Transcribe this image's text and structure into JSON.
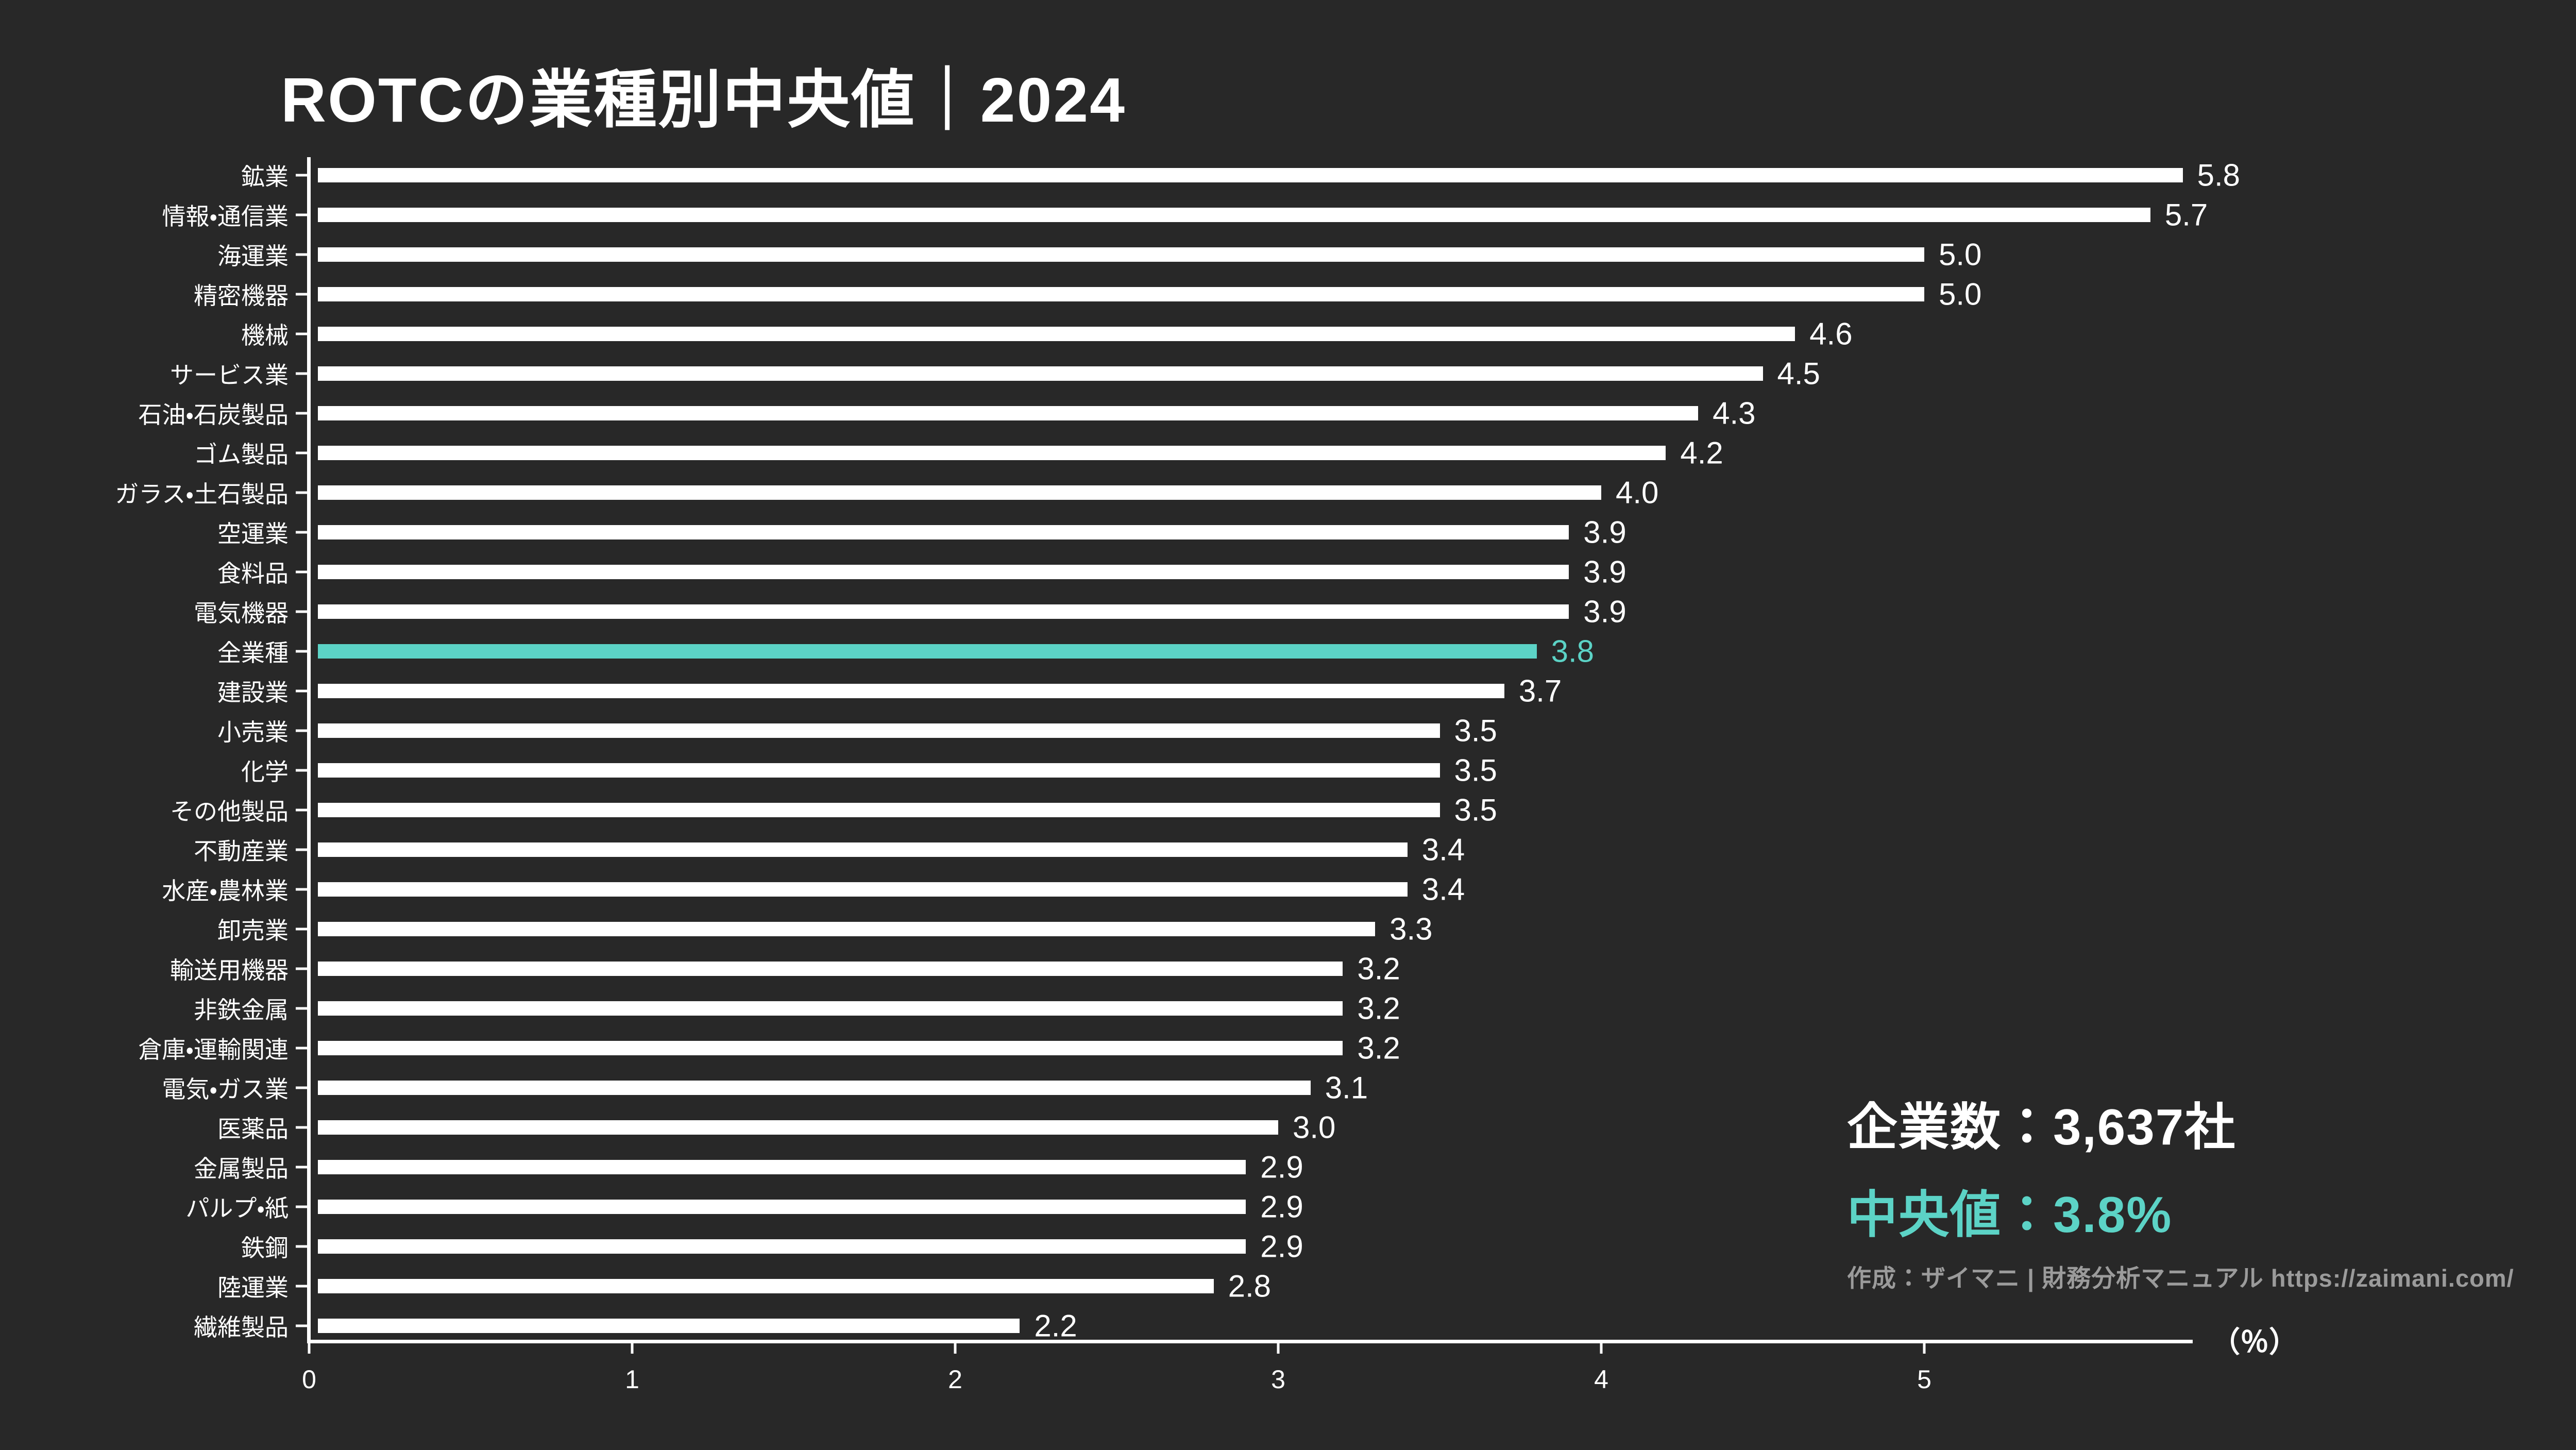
{
  "title": "ROTCの業種別中央値｜2024",
  "chart_data": {
    "type": "bar",
    "orientation": "horizontal",
    "title": "ROTCの業種別中央値｜2024",
    "categories": [
      "鉱業",
      "情報・通信業",
      "海運業",
      "精密機器",
      "機械",
      "サービス業",
      "石油・石炭製品",
      "ゴム製品",
      "ガラス・土石製品",
      "空運業",
      "食料品",
      "電気機器",
      "全業種",
      "建設業",
      "小売業",
      "化学",
      "その他製品",
      "不動産業",
      "水産・農林業",
      "卸売業",
      "輸送用機器",
      "非鉄金属",
      "倉庫・運輸関連",
      "電気・ガス業",
      "医薬品",
      "金属製品",
      "パルプ・紙",
      "鉄鋼",
      "陸運業",
      "繊維製品"
    ],
    "values": [
      5.8,
      5.7,
      5.0,
      5.0,
      4.6,
      4.5,
      4.3,
      4.2,
      4.0,
      3.9,
      3.9,
      3.9,
      3.8,
      3.7,
      3.5,
      3.5,
      3.5,
      3.4,
      3.4,
      3.3,
      3.2,
      3.2,
      3.2,
      3.1,
      3.0,
      2.9,
      2.9,
      2.9,
      2.8,
      2.2
    ],
    "highlight": {
      "category": "全業種",
      "value": 3.8,
      "color": "#5cd3c6"
    },
    "bar_color": "#ffffff",
    "xlabel": "（％）",
    "xticks": [
      0,
      1,
      2,
      3,
      4,
      5
    ],
    "xlim": [
      0,
      5.8
    ],
    "grid": false,
    "legend": "none"
  },
  "footer": {
    "companies": "企業数：3,637社",
    "median": "中央値：3.8%",
    "attribution": "作成：ザイマニ | 財務分析マニュアル https://zaimani.com/"
  },
  "colors": {
    "background": "#282828",
    "bar": "#ffffff",
    "accent": "#5cd3c6",
    "muted_text": "#9b9b9b"
  }
}
